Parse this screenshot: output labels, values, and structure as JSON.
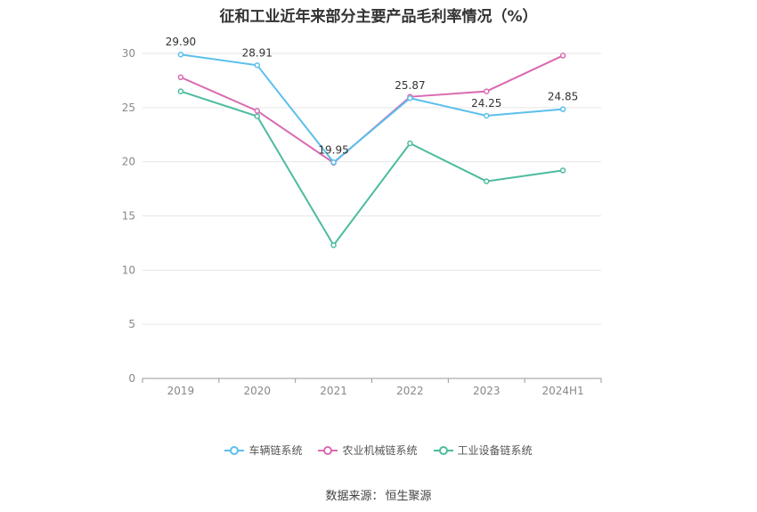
{
  "chart_data": {
    "type": "line",
    "title": "征和工业近年来部分主要产品毛利率情况（%）",
    "categories": [
      "2019",
      "2020",
      "2021",
      "2022",
      "2023",
      "2024H1"
    ],
    "ylim": [
      0,
      30
    ],
    "yticks": [
      0,
      5,
      10,
      15,
      20,
      25,
      30
    ],
    "ylabel": "",
    "xlabel": "",
    "grid": true,
    "legend_position": "bottom",
    "series": [
      {
        "name": "车辆链系统",
        "color": "#5bc0eb",
        "values": [
          29.9,
          28.91,
          19.95,
          25.87,
          24.25,
          24.85
        ],
        "labels": [
          "29.90",
          "28.91",
          "19.95",
          "25.87",
          "24.25",
          "24.85"
        ]
      },
      {
        "name": "农业机械链系统",
        "color": "#d96bb1",
        "values": [
          27.8,
          24.7,
          19.9,
          26.0,
          26.5,
          29.8
        ]
      },
      {
        "name": "工业设备链系统",
        "color": "#4dbb9f",
        "values": [
          26.5,
          24.2,
          12.3,
          21.7,
          18.2,
          19.2
        ]
      }
    ]
  },
  "source": {
    "label": "数据来源：",
    "value": "恒生聚源"
  }
}
